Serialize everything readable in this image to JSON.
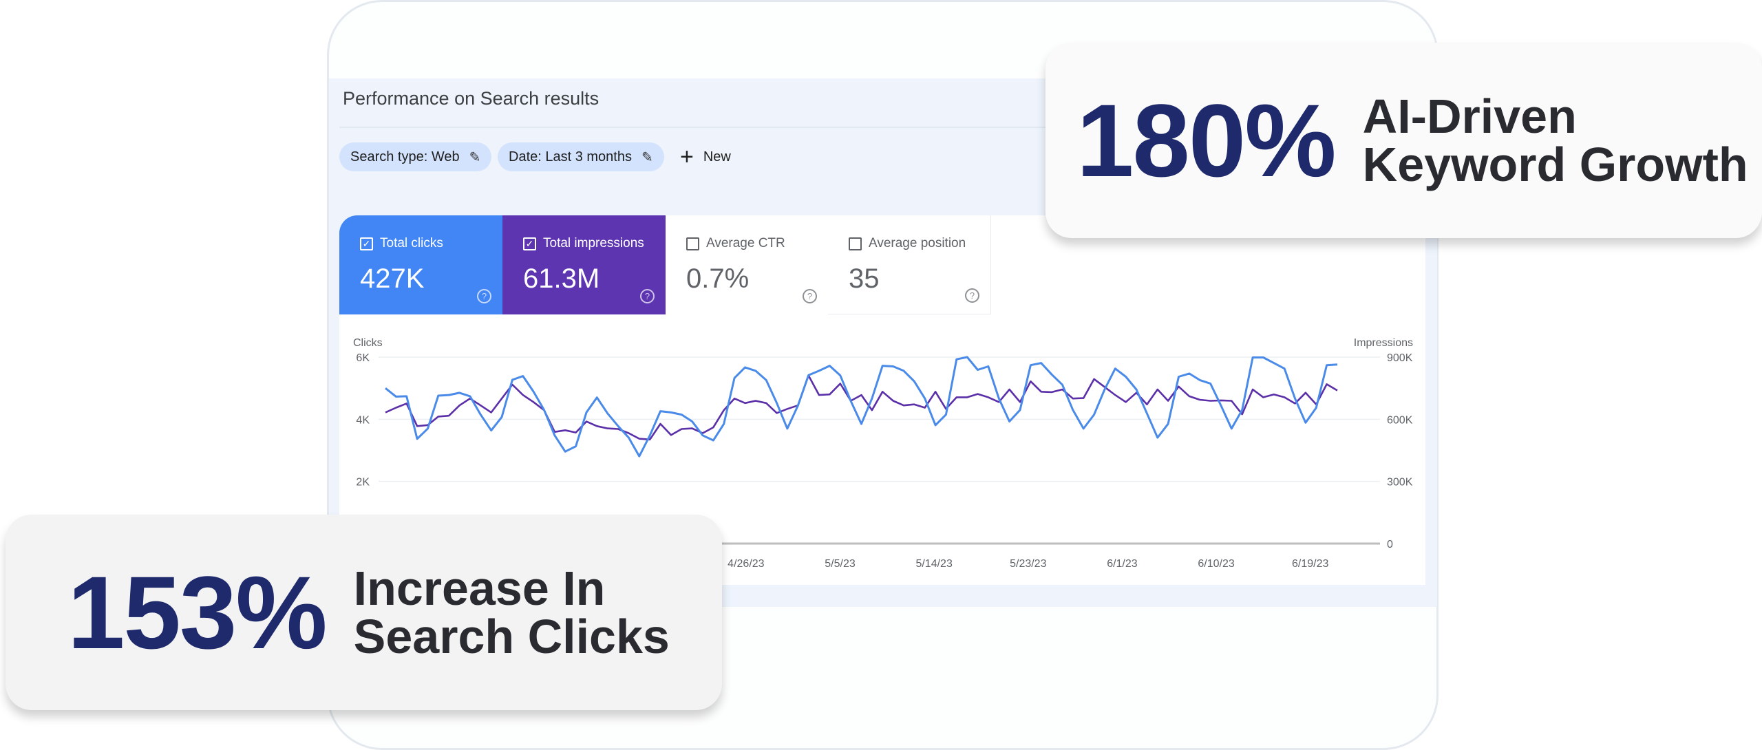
{
  "panel": {
    "title": "Performance on Search results",
    "filters": [
      {
        "label": "Search type: Web",
        "icon": "pencil-icon"
      },
      {
        "label": "Date: Last 3 months",
        "icon": "pencil-icon"
      }
    ],
    "new_label": "New"
  },
  "metrics": [
    {
      "label": "Total clicks",
      "value": "427K",
      "checked": true,
      "color": "#4285f4"
    },
    {
      "label": "Total impressions",
      "value": "61.3M",
      "checked": true,
      "color": "#5e35b1"
    },
    {
      "label": "Average CTR",
      "value": "0.7%",
      "checked": false
    },
    {
      "label": "Average position",
      "value": "35",
      "checked": false
    }
  ],
  "chart_data": {
    "type": "line",
    "left_axis": {
      "label": "Clicks",
      "ticks": [
        "6K",
        "4K",
        "2K"
      ],
      "tick_values": [
        6000,
        4000,
        2000
      ],
      "range": [
        0,
        6000
      ]
    },
    "right_axis": {
      "label": "Impressions",
      "ticks": [
        "900K",
        "600K",
        "300K",
        "0"
      ],
      "tick_values": [
        900000,
        600000,
        300000,
        0
      ],
      "range": [
        0,
        900000
      ]
    },
    "x_tick_labels": [
      "4/26/23",
      "5/5/23",
      "5/14/23",
      "5/23/23",
      "6/1/23",
      "6/10/23",
      "6/19/23"
    ],
    "x_tick_positions": [
      0.3788,
      0.4776,
      0.5764,
      0.6752,
      0.774,
      0.8728,
      0.9716
    ],
    "grid": true,
    "series": [
      {
        "name": "Clicks",
        "axis": "left",
        "color": "#4a8ae8",
        "values": [
          5000,
          4730,
          4740,
          3370,
          3700,
          4760,
          4780,
          4850,
          4740,
          4150,
          3640,
          4070,
          5270,
          5390,
          4890,
          4300,
          3480,
          2960,
          3130,
          4220,
          4700,
          4190,
          3780,
          3410,
          2810,
          3480,
          4260,
          4220,
          4150,
          3930,
          3480,
          3320,
          3850,
          5330,
          5670,
          5560,
          5260,
          4520,
          3700,
          4440,
          5420,
          5560,
          5720,
          5410,
          4590,
          3850,
          4670,
          5720,
          5700,
          5560,
          5220,
          4670,
          3810,
          4150,
          5930,
          6000,
          5590,
          5700,
          4670,
          3930,
          4300,
          5740,
          5810,
          5440,
          5110,
          4300,
          3700,
          4150,
          4960,
          5630,
          5370,
          4960,
          4190,
          3410,
          3850,
          5370,
          5470,
          5260,
          5150,
          4440,
          3700,
          4300,
          5990,
          5990,
          5810,
          5630,
          4670,
          3890,
          4370,
          5740,
          5760
        ]
      },
      {
        "name": "Impressions",
        "axis": "right",
        "color": "#5b2fa8",
        "values": [
          633000,
          656000,
          676000,
          567000,
          572000,
          613000,
          617000,
          667000,
          700000,
          667000,
          633000,
          700000,
          767000,
          717000,
          683000,
          644000,
          539000,
          547000,
          536000,
          589000,
          567000,
          556000,
          553000,
          533000,
          506000,
          502000,
          578000,
          524000,
          553000,
          556000,
          533000,
          561000,
          644000,
          700000,
          678000,
          689000,
          678000,
          630000,
          650000,
          667000,
          811000,
          717000,
          720000,
          772000,
          689000,
          717000,
          644000,
          733000,
          689000,
          667000,
          672000,
          656000,
          733000,
          650000,
          706000,
          706000,
          722000,
          706000,
          683000,
          744000,
          683000,
          783000,
          733000,
          731000,
          744000,
          700000,
          702000,
          794000,
          756000,
          717000,
          683000,
          728000,
          672000,
          744000,
          689000,
          758000,
          711000,
          694000,
          689000,
          691000,
          689000,
          624000,
          744000,
          706000,
          720000,
          706000,
          676000,
          728000,
          672000,
          769000,
          739000
        ]
      }
    ]
  },
  "badges": [
    {
      "percent": "180%",
      "line1": "AI-Driven",
      "line2": "Keyword Growth"
    },
    {
      "percent": "153%",
      "line1": "Increase In",
      "line2": "Search Clicks"
    }
  ]
}
